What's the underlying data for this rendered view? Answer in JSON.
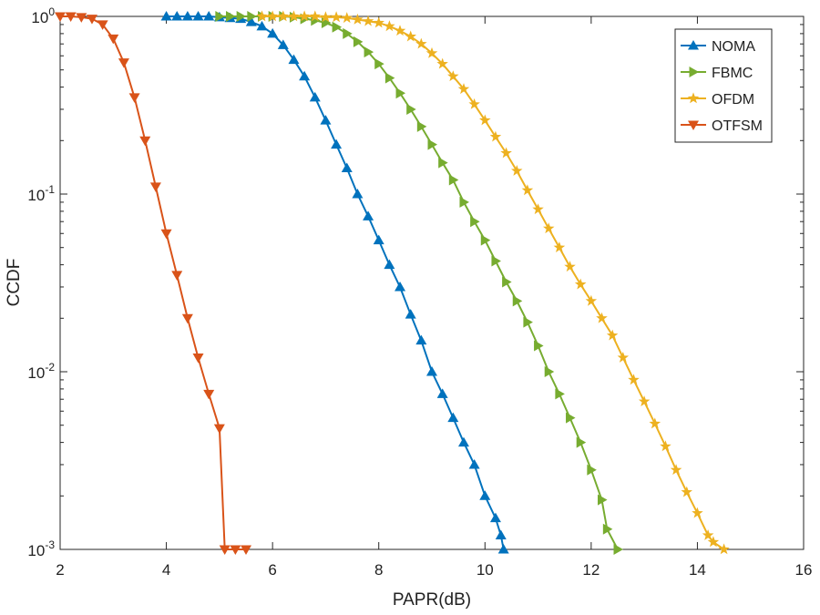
{
  "chart_data": {
    "type": "line",
    "title": "",
    "xlabel": "PAPR(dB)",
    "ylabel": "CCDF",
    "xlim": [
      2,
      16
    ],
    "ylim": [
      0.001,
      1
    ],
    "yscale": "log",
    "xticks": [
      2,
      4,
      6,
      8,
      10,
      12,
      14,
      16
    ],
    "yticks": [
      {
        "value": 1,
        "base": "10",
        "exp": "0"
      },
      {
        "value": 0.1,
        "base": "10",
        "exp": "-1"
      },
      {
        "value": 0.01,
        "base": "10",
        "exp": "-2"
      },
      {
        "value": 0.001,
        "base": "10",
        "exp": "-3"
      }
    ],
    "legend_position": "top-right",
    "series": [
      {
        "name": "NOMA",
        "color": "#0072BD",
        "marker": "triangle-up",
        "x": [
          4.0,
          4.2,
          4.4,
          4.6,
          4.8,
          5.0,
          5.2,
          5.4,
          5.6,
          5.8,
          6.0,
          6.2,
          6.4,
          6.6,
          6.8,
          7.0,
          7.2,
          7.4,
          7.6,
          7.8,
          8.0,
          8.2,
          8.4,
          8.6,
          8.8,
          9.0,
          9.2,
          9.4,
          9.6,
          9.8,
          10.0,
          10.2,
          10.3,
          10.35
        ],
        "y": [
          1,
          1,
          1,
          1,
          1,
          0.99,
          0.98,
          0.97,
          0.93,
          0.88,
          0.8,
          0.69,
          0.57,
          0.46,
          0.35,
          0.26,
          0.19,
          0.14,
          0.1,
          0.075,
          0.055,
          0.04,
          0.03,
          0.021,
          0.015,
          0.01,
          0.0075,
          0.0055,
          0.004,
          0.003,
          0.002,
          0.0015,
          0.0012,
          0.001
        ]
      },
      {
        "name": "FBMC",
        "color": "#77AC30",
        "marker": "triangle-right",
        "x": [
          5.0,
          5.2,
          5.4,
          5.6,
          5.8,
          6.0,
          6.2,
          6.4,
          6.6,
          6.8,
          7.0,
          7.2,
          7.4,
          7.6,
          7.8,
          8.0,
          8.2,
          8.4,
          8.6,
          8.8,
          9.0,
          9.2,
          9.4,
          9.6,
          9.8,
          10.0,
          10.2,
          10.4,
          10.6,
          10.8,
          11.0,
          11.2,
          11.4,
          11.6,
          11.8,
          12.0,
          12.2,
          12.3,
          12.5
        ],
        "y": [
          1,
          1,
          1,
          1,
          1,
          1,
          1,
          0.99,
          0.97,
          0.95,
          0.92,
          0.87,
          0.8,
          0.72,
          0.63,
          0.54,
          0.45,
          0.37,
          0.3,
          0.24,
          0.19,
          0.15,
          0.12,
          0.09,
          0.07,
          0.055,
          0.042,
          0.032,
          0.025,
          0.019,
          0.014,
          0.01,
          0.0075,
          0.0055,
          0.004,
          0.0028,
          0.0019,
          0.0013,
          0.001
        ]
      },
      {
        "name": "OFDM",
        "color": "#EDB120",
        "marker": "star",
        "x": [
          5.8,
          6.0,
          6.2,
          6.4,
          6.6,
          6.8,
          7.0,
          7.2,
          7.4,
          7.6,
          7.8,
          8.0,
          8.2,
          8.4,
          8.6,
          8.8,
          9.0,
          9.2,
          9.4,
          9.6,
          9.8,
          10.0,
          10.2,
          10.4,
          10.6,
          10.8,
          11.0,
          11.2,
          11.4,
          11.6,
          11.8,
          12.0,
          12.2,
          12.4,
          12.6,
          12.8,
          13.0,
          13.2,
          13.4,
          13.6,
          13.8,
          14.0,
          14.2,
          14.3,
          14.5
        ],
        "y": [
          1,
          1,
          1,
          1,
          1,
          1,
          0.99,
          0.99,
          0.98,
          0.96,
          0.94,
          0.92,
          0.88,
          0.83,
          0.77,
          0.7,
          0.62,
          0.54,
          0.46,
          0.39,
          0.32,
          0.26,
          0.21,
          0.17,
          0.135,
          0.105,
          0.082,
          0.064,
          0.05,
          0.039,
          0.031,
          0.025,
          0.02,
          0.016,
          0.012,
          0.009,
          0.0068,
          0.0051,
          0.0038,
          0.0028,
          0.0021,
          0.0016,
          0.0012,
          0.0011,
          0.001
        ]
      },
      {
        "name": "OTFSM",
        "color": "#D95319",
        "marker": "triangle-down",
        "x": [
          2.0,
          2.2,
          2.4,
          2.6,
          2.8,
          3.0,
          3.2,
          3.4,
          3.6,
          3.8,
          4.0,
          4.2,
          4.4,
          4.6,
          4.8,
          5.0,
          5.1,
          5.3,
          5.5
        ],
        "y": [
          1,
          1,
          0.99,
          0.97,
          0.9,
          0.75,
          0.55,
          0.35,
          0.2,
          0.11,
          0.06,
          0.035,
          0.02,
          0.012,
          0.0075,
          0.0048,
          0.001,
          0.001,
          0.001
        ]
      }
    ]
  }
}
